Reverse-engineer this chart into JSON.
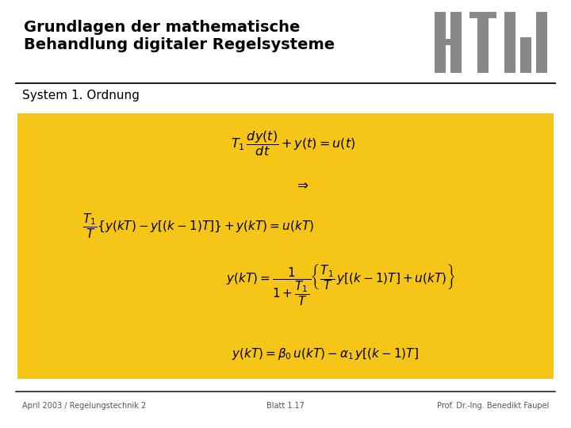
{
  "title_line1": "Grundlagen der mathematische",
  "title_line2": "Behandlung digitaler Regelsysteme",
  "subtitle": "System 1. Ordnung",
  "footer_left": "April 2003 / Regelungstechnik 2",
  "footer_center": "Blatt 1.17",
  "footer_right": "Prof. Dr.-Ing. Benedikt Faupel",
  "bg_color": "#ffffff",
  "box_color": "#F5C518",
  "title_color": "#000000",
  "subtitle_color": "#000000",
  "footer_color": "#555555",
  "logo_color": "#888888",
  "title_fontsize": 14,
  "subtitle_fontsize": 11,
  "eq_fontsize": 11,
  "footer_fontsize": 7
}
